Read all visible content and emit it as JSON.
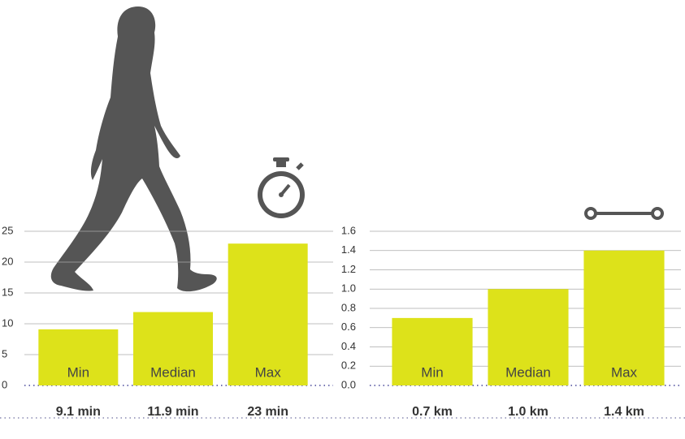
{
  "chart_data": [
    {
      "type": "bar",
      "categories": [
        "Min",
        "Median",
        "Max"
      ],
      "values": [
        9.1,
        11.9,
        23
      ],
      "value_labels": [
        "9.1 min",
        "11.9 min",
        "23 min"
      ],
      "color": "#dde21a",
      "ylim": [
        0,
        25
      ],
      "yticks": [
        0,
        5,
        10,
        15,
        20,
        25
      ],
      "grid": true
    },
    {
      "type": "bar",
      "categories": [
        "Min",
        "Median",
        "Max"
      ],
      "values": [
        0.7,
        1.0,
        1.4
      ],
      "value_labels": [
        "0.7 km",
        "1.0 km",
        "1.4 km"
      ],
      "color": "#dde21a",
      "ylim": [
        0,
        1.6
      ],
      "yticks": [
        {
          "value": 0,
          "label": "0.0"
        },
        0.2,
        0.4,
        0.6,
        0.8,
        {
          "value": 1,
          "label": "1.0"
        },
        1.2,
        1.4,
        1.6
      ],
      "grid": true
    }
  ]
}
